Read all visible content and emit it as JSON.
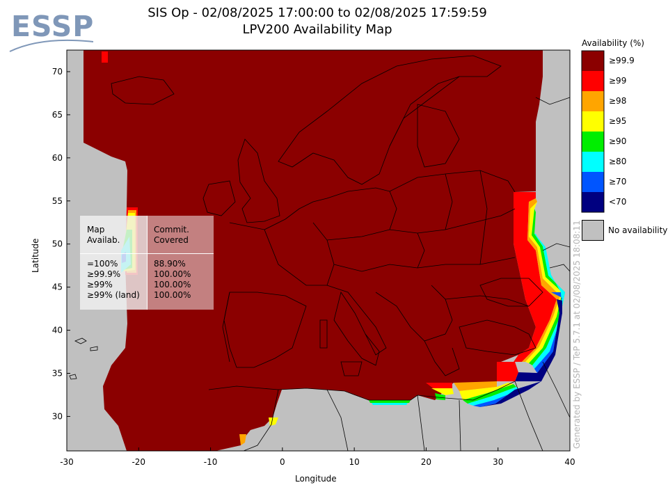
{
  "header": {
    "title": "SIS Op - 02/08/2025 17:00:00 to 02/08/2025 17:59:59",
    "subtitle": "LPV200 Availability Map"
  },
  "logo": {
    "text": "ESSP"
  },
  "axes": {
    "xlabel": "Longitude",
    "ylabel": "Latitude",
    "x_ticks": [
      "-30",
      "-20",
      "-10",
      "0",
      "10",
      "20",
      "30",
      "40"
    ],
    "y_ticks": [
      "30",
      "35",
      "40",
      "45",
      "50",
      "55",
      "60",
      "65",
      "70"
    ],
    "xlim": [
      -30,
      40
    ],
    "ylim": [
      26,
      72.5
    ]
  },
  "legend": {
    "title": "Availability (%)",
    "entries": [
      {
        "label": "≥99.9",
        "color": "#8b0000"
      },
      {
        "label": "≥99",
        "color": "#ff0000"
      },
      {
        "label": "≥98",
        "color": "#ffa500"
      },
      {
        "label": "≥95",
        "color": "#ffff00"
      },
      {
        "label": "≥90",
        "color": "#00ee00"
      },
      {
        "label": "≥80",
        "color": "#00ffff"
      },
      {
        "label": "≥70",
        "color": "#0055ff"
      },
      {
        "label": "<70",
        "color": "#000080"
      }
    ],
    "no_availability": {
      "label": "No availability",
      "color": "#c0c0c0"
    }
  },
  "stats": {
    "col1_header": "Map\nAvailab.",
    "col2_header": "Commit.\nCovered",
    "rows": [
      {
        "label": "=100%",
        "value": "88.90%"
      },
      {
        "label": "≥99.9%",
        "value": "100.00%"
      },
      {
        "label": "≥99%",
        "value": "100.00%"
      },
      {
        "label": "≥99% (land)",
        "value": "100.00%"
      }
    ]
  },
  "credit": "Generated by ESSP / TeP 5.7.1 at 02/08/2025 18:08:11",
  "colors": {
    "background_no_availability": "#c0c0c0",
    "availability_high": "#8b0000",
    "border_lines": "#000000"
  }
}
